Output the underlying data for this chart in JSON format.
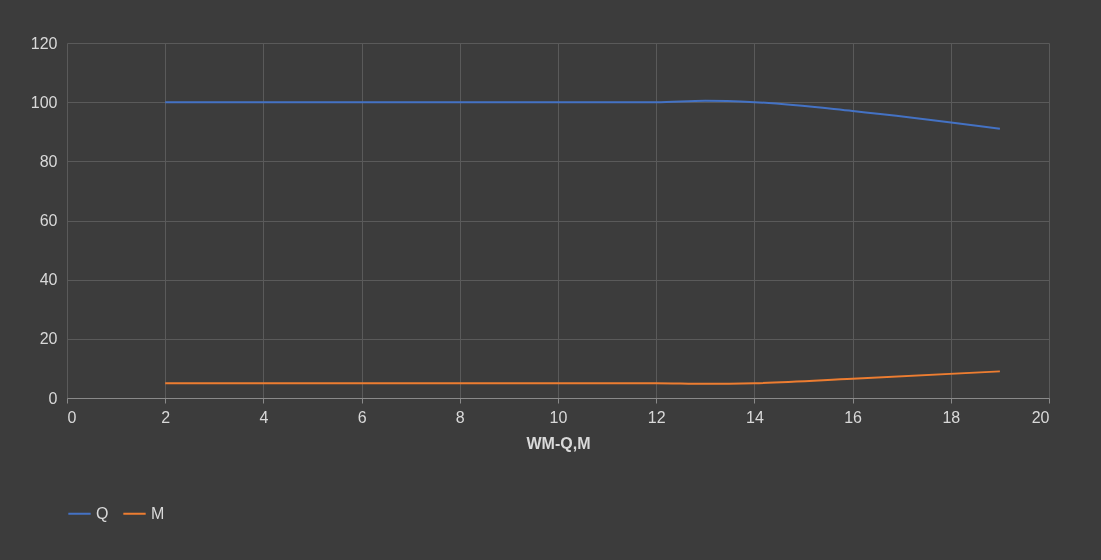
{
  "chart_data": {
    "type": "line",
    "xlabel": "WM-Q,M",
    "x": [
      2,
      12,
      13,
      14,
      16,
      19
    ],
    "series": [
      {
        "name": "Q",
        "color": "#4472c4",
        "values": [
          100,
          100,
          100.5,
          100,
          97,
          91
        ]
      },
      {
        "name": "M",
        "color": "#ed7d31",
        "values": [
          5,
          5,
          4.8,
          5,
          6.5,
          9
        ]
      }
    ],
    "xlim": [
      0,
      20
    ],
    "xticks": [
      0,
      2,
      4,
      6,
      8,
      10,
      12,
      14,
      16,
      18,
      20
    ],
    "ylim": [
      0,
      120
    ],
    "yticks": [
      0,
      20,
      40,
      60,
      80,
      100,
      120
    ],
    "grid": true,
    "legend": "bottom",
    "marker": "none",
    "line_style": "solid"
  }
}
